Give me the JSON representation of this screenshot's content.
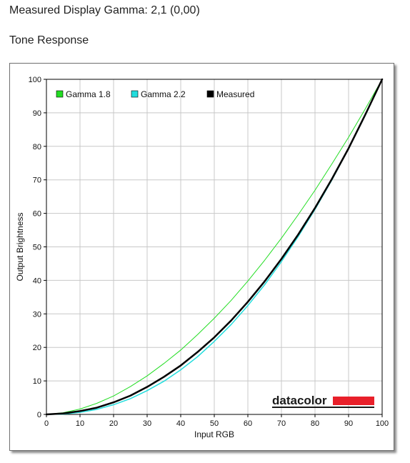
{
  "header": {
    "gamma_line": "Measured Display Gamma: 2,1 (0,00)",
    "section_title": "Tone Response"
  },
  "logo": {
    "text": "datacolor",
    "bar_color": "#e8202a"
  },
  "chart_data": {
    "type": "line",
    "title": "",
    "xlabel": "Input RGB",
    "ylabel": "Output Brightness",
    "xlim": [
      0,
      100
    ],
    "ylim": [
      0,
      100
    ],
    "x_ticks": [
      0,
      10,
      20,
      30,
      40,
      50,
      60,
      70,
      80,
      90,
      100
    ],
    "y_ticks": [
      0,
      10,
      20,
      30,
      40,
      50,
      60,
      70,
      80,
      90,
      100
    ],
    "grid": true,
    "legend_position": "top-left",
    "x": [
      0,
      5,
      10,
      15,
      20,
      25,
      30,
      35,
      40,
      45,
      50,
      55,
      60,
      65,
      70,
      75,
      80,
      85,
      90,
      95,
      100
    ],
    "series": [
      {
        "name": "Gamma 1.8",
        "color": "#22dd22",
        "line_width": 1,
        "values": [
          0,
          0.5,
          1.6,
          3.3,
          5.5,
          8.3,
          11.5,
          15.2,
          19.2,
          23.8,
          28.7,
          34.0,
          39.8,
          46.0,
          52.6,
          59.6,
          66.9,
          74.7,
          82.7,
          91.2,
          100
        ]
      },
      {
        "name": "Gamma 2.2",
        "color": "#22dddd",
        "line_width": 1.5,
        "values": [
          0,
          0.1,
          0.6,
          1.5,
          2.9,
          4.7,
          7.1,
          9.9,
          13.3,
          17.2,
          21.8,
          26.8,
          32.5,
          38.7,
          45.6,
          53.1,
          61.2,
          69.9,
          79.3,
          89.3,
          100
        ]
      },
      {
        "name": "Measured",
        "color": "#000000",
        "line_width": 2.5,
        "values": [
          0,
          0.3,
          1.0,
          2.0,
          3.6,
          5.6,
          8.2,
          11.2,
          14.6,
          18.6,
          23.0,
          28.0,
          33.6,
          39.7,
          46.4,
          53.7,
          61.6,
          70.2,
          79.4,
          89.5,
          100
        ]
      }
    ]
  }
}
